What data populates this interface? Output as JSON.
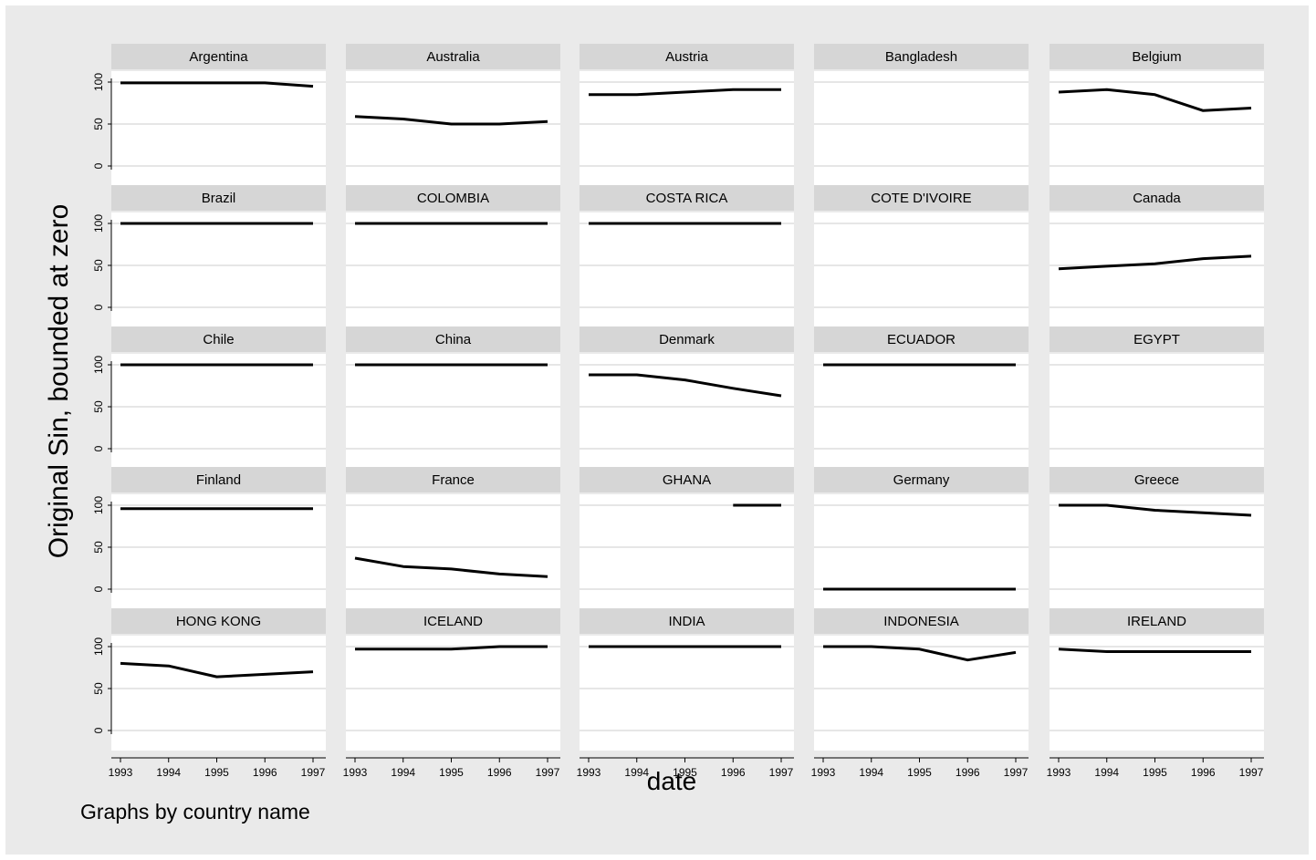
{
  "chart_data": {
    "type": "line",
    "layout": "small-multiples",
    "ylabel": "Original Sin, bounded at zero",
    "xlabel": "date",
    "note": "Graphs by  country name",
    "x": [
      1993,
      1994,
      1995,
      1996,
      1997
    ],
    "xticks": [
      "1993",
      "1994",
      "1995",
      "1996",
      "1997"
    ],
    "yticks": [
      "0",
      "50",
      "100"
    ],
    "ylim": [
      0,
      100
    ],
    "grid": true,
    "colors": {
      "background": "#eaeaea",
      "panel": "#ffffff",
      "strip": "#d6d6d6",
      "line": "#000000",
      "grid": "#e6e6e6"
    },
    "panels": [
      {
        "name": "Argentina",
        "values": [
          99,
          99,
          99,
          99,
          95
        ]
      },
      {
        "name": "Australia",
        "values": [
          59,
          56,
          50,
          50,
          53
        ]
      },
      {
        "name": "Austria",
        "values": [
          85,
          85,
          88,
          91,
          91
        ]
      },
      {
        "name": "Bangladesh",
        "values": [
          null,
          null,
          null,
          null,
          null
        ]
      },
      {
        "name": "Belgium",
        "values": [
          88,
          91,
          85,
          66,
          69
        ]
      },
      {
        "name": "Brazil",
        "values": [
          100,
          100,
          100,
          100,
          100
        ]
      },
      {
        "name": "COLOMBIA",
        "values": [
          100,
          100,
          100,
          100,
          100
        ]
      },
      {
        "name": "COSTA RICA",
        "values": [
          100,
          100,
          100,
          100,
          100
        ]
      },
      {
        "name": "COTE D'IVOIRE",
        "values": [
          null,
          null,
          null,
          null,
          null
        ]
      },
      {
        "name": "Canada",
        "values": [
          46,
          49,
          52,
          58,
          61
        ]
      },
      {
        "name": "Chile",
        "values": [
          100,
          100,
          100,
          100,
          100
        ]
      },
      {
        "name": "China",
        "values": [
          100,
          100,
          100,
          100,
          100
        ]
      },
      {
        "name": "Denmark",
        "values": [
          88,
          88,
          82,
          72,
          63
        ]
      },
      {
        "name": "ECUADOR",
        "values": [
          100,
          100,
          100,
          100,
          100
        ]
      },
      {
        "name": "EGYPT",
        "values": [
          null,
          null,
          null,
          null,
          null
        ]
      },
      {
        "name": "Finland",
        "values": [
          96,
          96,
          96,
          96,
          96
        ]
      },
      {
        "name": "France",
        "values": [
          37,
          27,
          24,
          18,
          15
        ]
      },
      {
        "name": "GHANA",
        "values": [
          null,
          null,
          null,
          100,
          100
        ]
      },
      {
        "name": "Germany",
        "values": [
          0,
          0,
          0,
          0,
          0
        ]
      },
      {
        "name": "Greece",
        "values": [
          100,
          100,
          94,
          91,
          88
        ]
      },
      {
        "name": "HONG KONG",
        "values": [
          80,
          77,
          64,
          67,
          70
        ]
      },
      {
        "name": "ICELAND",
        "values": [
          97,
          97,
          97,
          100,
          100
        ]
      },
      {
        "name": "INDIA",
        "values": [
          100,
          100,
          100,
          100,
          100
        ]
      },
      {
        "name": "INDONESIA",
        "values": [
          100,
          100,
          97,
          84,
          93
        ]
      },
      {
        "name": "IRELAND",
        "values": [
          97,
          94,
          94,
          94,
          94
        ]
      }
    ]
  }
}
